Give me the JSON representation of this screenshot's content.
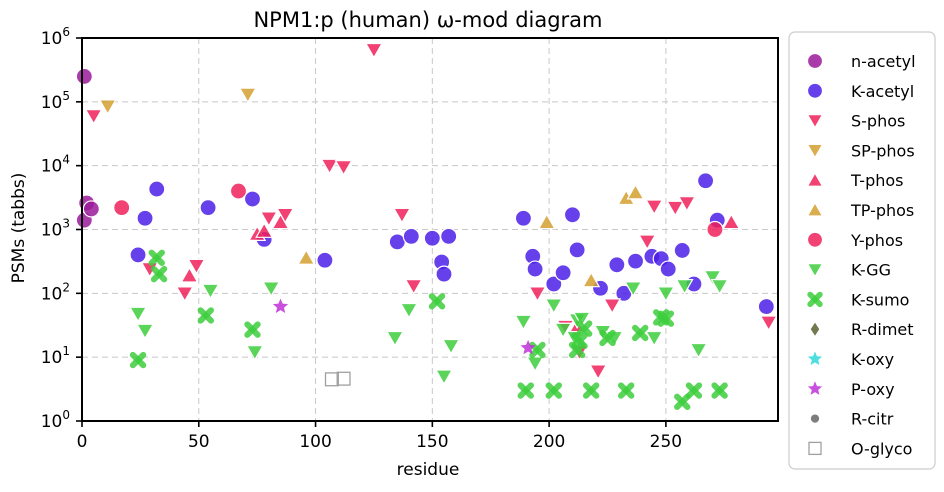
{
  "chart_data": {
    "type": "scatter",
    "title": "NPM1:p (human) ω-mod diagram",
    "xlabel": "residue",
    "ylabel": "PSMs (tabbs)",
    "xlim": [
      0,
      298
    ],
    "ylim": [
      1,
      1000000
    ],
    "yscale": "log",
    "x_ticks": [
      0,
      50,
      100,
      150,
      200,
      250
    ],
    "y_ticks": [
      {
        "value": 1,
        "base": "10",
        "exp": "0"
      },
      {
        "value": 10,
        "base": "10",
        "exp": "1"
      },
      {
        "value": 100,
        "base": "10",
        "exp": "2"
      },
      {
        "value": 1000,
        "base": "10",
        "exp": "3"
      },
      {
        "value": 10000,
        "base": "10",
        "exp": "4"
      },
      {
        "value": 100000,
        "base": "10",
        "exp": "5"
      },
      {
        "value": 1000000,
        "base": "10",
        "exp": "6"
      }
    ],
    "grid": true,
    "legend_position": "outside-right",
    "series": [
      {
        "name": "n-acetyl",
        "marker": "circle",
        "color": "#9a1a9a",
        "points": [
          [
            1,
            250000
          ],
          [
            1,
            1400
          ],
          [
            2,
            2600
          ],
          [
            4,
            2100
          ]
        ]
      },
      {
        "name": "K-acetyl",
        "marker": "circle",
        "color": "#4b1fe6",
        "points": [
          [
            24,
            400
          ],
          [
            27,
            1500
          ],
          [
            32,
            4300
          ],
          [
            54,
            2200
          ],
          [
            73,
            3000
          ],
          [
            78,
            700
          ],
          [
            104,
            330
          ],
          [
            135,
            640
          ],
          [
            141,
            780
          ],
          [
            150,
            730
          ],
          [
            154,
            310
          ],
          [
            155,
            200
          ],
          [
            157,
            780
          ],
          [
            189,
            1500
          ],
          [
            193,
            380
          ],
          [
            194,
            240
          ],
          [
            202,
            140
          ],
          [
            206,
            210
          ],
          [
            210,
            1700
          ],
          [
            212,
            480
          ],
          [
            222,
            120
          ],
          [
            229,
            280
          ],
          [
            232,
            100
          ],
          [
            237,
            320
          ],
          [
            244,
            380
          ],
          [
            248,
            350
          ],
          [
            251,
            240
          ],
          [
            262,
            140
          ],
          [
            267,
            5800
          ],
          [
            257,
            470
          ],
          [
            272,
            1400
          ],
          [
            293,
            62
          ]
        ]
      },
      {
        "name": "S-phos",
        "marker": "triangle-down",
        "color": "#f0205a",
        "points": [
          [
            5,
            60000
          ],
          [
            29,
            240
          ],
          [
            44,
            100
          ],
          [
            49,
            270
          ],
          [
            80,
            1500
          ],
          [
            87,
            1700
          ],
          [
            106,
            10000
          ],
          [
            112,
            9500
          ],
          [
            125,
            650000
          ],
          [
            137,
            1700
          ],
          [
            142,
            130
          ],
          [
            195,
            100
          ],
          [
            207,
            30
          ],
          [
            213,
            12
          ],
          [
            221,
            6
          ],
          [
            227,
            65
          ],
          [
            242,
            650
          ],
          [
            245,
            2300
          ],
          [
            254,
            2200
          ],
          [
            259,
            2600
          ],
          [
            294,
            35
          ]
        ]
      },
      {
        "name": "SP-phos",
        "marker": "triangle-down",
        "color": "#d4a030",
        "points": [
          [
            11,
            85000
          ],
          [
            71,
            130000
          ]
        ]
      },
      {
        "name": "T-phos",
        "marker": "triangle-up",
        "color": "#f0205a",
        "points": [
          [
            46,
            190
          ],
          [
            75,
            850
          ],
          [
            78,
            950
          ],
          [
            85,
            1300
          ],
          [
            212,
            30
          ],
          [
            278,
            1300
          ]
        ]
      },
      {
        "name": "TP-phos",
        "marker": "triangle-up",
        "color": "#d4a030",
        "points": [
          [
            96,
            360
          ],
          [
            199,
            1300
          ],
          [
            218,
            160
          ],
          [
            233,
            3100
          ],
          [
            237,
            3800
          ]
        ]
      },
      {
        "name": "Y-phos",
        "marker": "circle",
        "color": "#f0205a",
        "points": [
          [
            17,
            2200
          ],
          [
            67,
            4000
          ],
          [
            271,
            1000
          ]
        ]
      },
      {
        "name": "K-GG",
        "marker": "triangle-down",
        "color": "#3dce3d",
        "points": [
          [
            24,
            48
          ],
          [
            27,
            26
          ],
          [
            55,
            110
          ],
          [
            74,
            12
          ],
          [
            81,
            120
          ],
          [
            134,
            20
          ],
          [
            140,
            55
          ],
          [
            155,
            5
          ],
          [
            158,
            15
          ],
          [
            189,
            36
          ],
          [
            194,
            8
          ],
          [
            202,
            65
          ],
          [
            206,
            27
          ],
          [
            211,
            20
          ],
          [
            212,
            38
          ],
          [
            214,
            40
          ],
          [
            223,
            25
          ],
          [
            228,
            20
          ],
          [
            236,
            120
          ],
          [
            245,
            20
          ],
          [
            250,
            100
          ],
          [
            258,
            130
          ],
          [
            264,
            13
          ],
          [
            270,
            180
          ],
          [
            273,
            130
          ]
        ]
      },
      {
        "name": "K-sumo",
        "marker": "x",
        "color": "#3dce3d",
        "points": [
          [
            24,
            9
          ],
          [
            32,
            360
          ],
          [
            33,
            200
          ],
          [
            53,
            45
          ],
          [
            73,
            27
          ],
          [
            152,
            75
          ],
          [
            190,
            3
          ],
          [
            195,
            13
          ],
          [
            202,
            3
          ],
          [
            212,
            13
          ],
          [
            213,
            18
          ],
          [
            215,
            28
          ],
          [
            218,
            3
          ],
          [
            225,
            20
          ],
          [
            233,
            3
          ],
          [
            239,
            24
          ],
          [
            248,
            42
          ],
          [
            250,
            40
          ],
          [
            257,
            2
          ],
          [
            262,
            3
          ],
          [
            273,
            3
          ]
        ]
      },
      {
        "name": "R-dimet",
        "marker": "diamond",
        "color": "#5a6030",
        "points": []
      },
      {
        "name": "K-oxy",
        "marker": "star",
        "color": "#30d8d8",
        "points": []
      },
      {
        "name": "P-oxy",
        "marker": "star",
        "color": "#c030d8",
        "points": [
          [
            85,
            62
          ],
          [
            191,
            14
          ]
        ]
      },
      {
        "name": "R-citr",
        "marker": "small-circle",
        "color": "#666666",
        "points": []
      },
      {
        "name": "O-glyco",
        "marker": "open-square",
        "color": "#a0a0a0",
        "points": [
          [
            107,
            4.5
          ],
          [
            112,
            4.6
          ]
        ]
      }
    ]
  }
}
